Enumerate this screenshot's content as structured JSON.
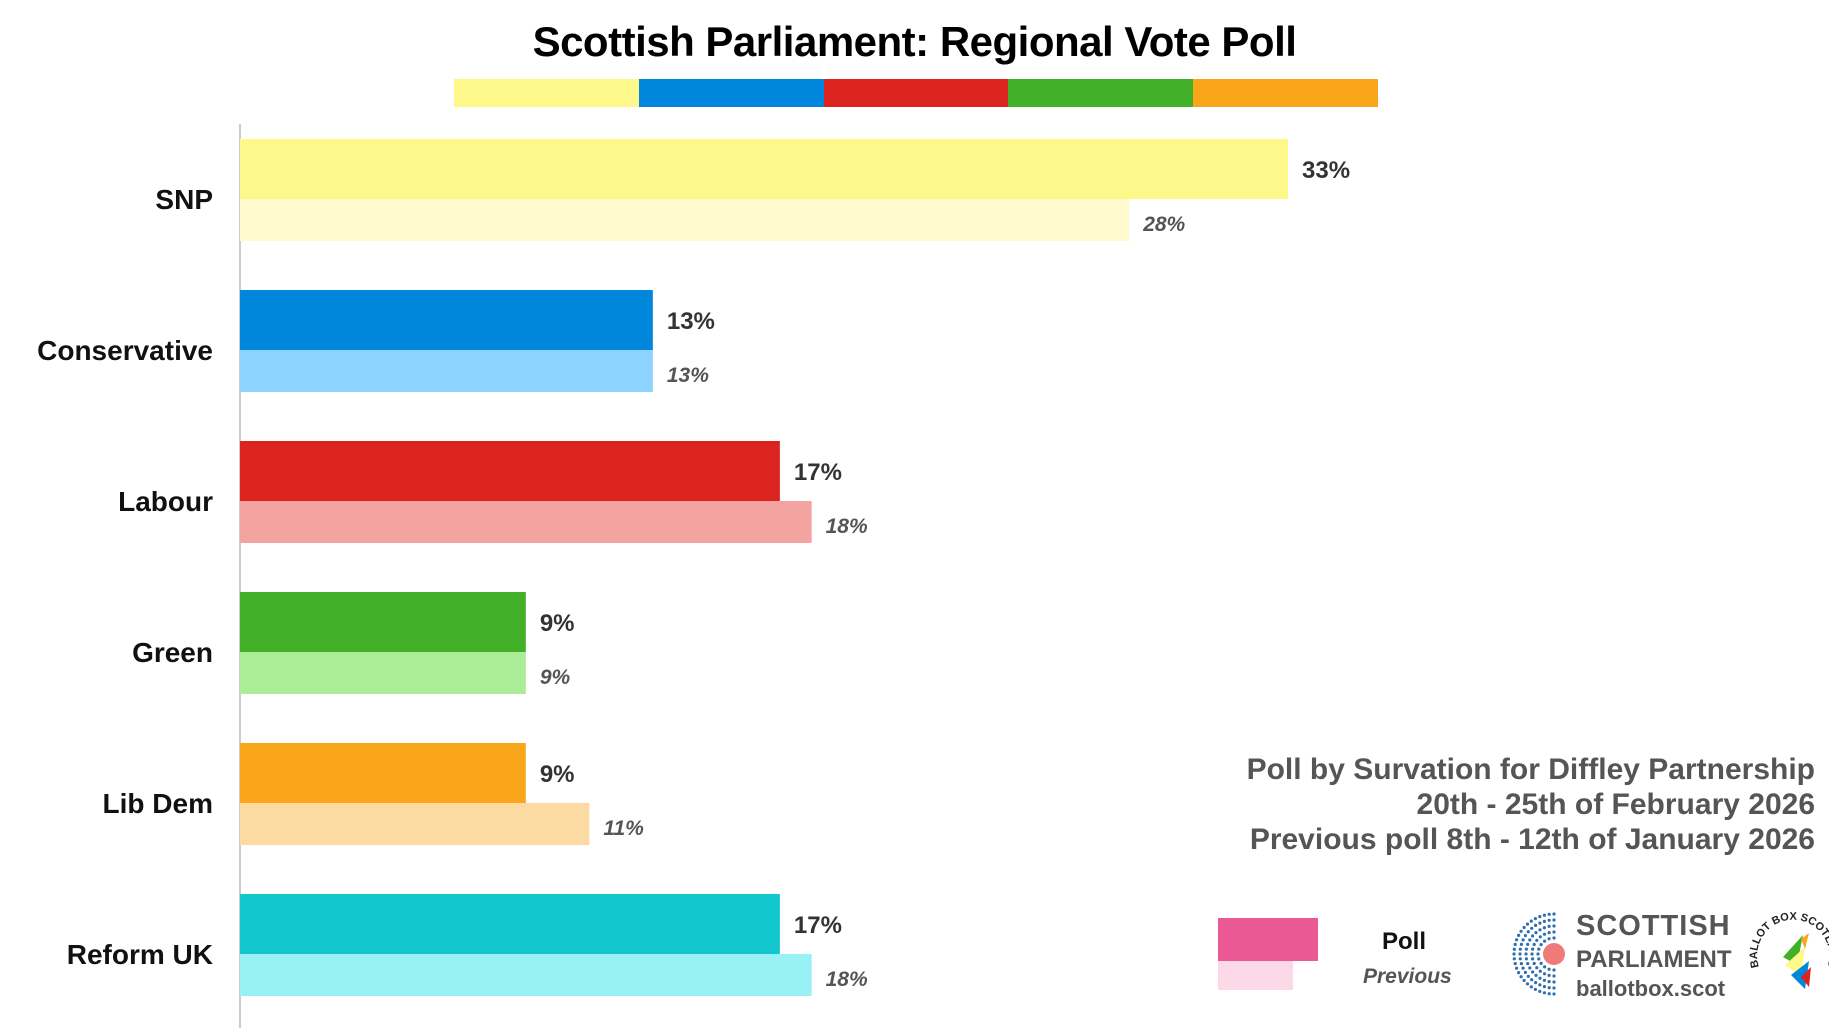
{
  "chart_data": {
    "type": "bar",
    "title": "Scottish Parliament: Regional Vote Poll",
    "categories": [
      "SNP",
      "Conservative",
      "Labour",
      "Green",
      "Lib Dem",
      "Reform UK"
    ],
    "series": [
      {
        "name": "Poll",
        "values": [
          33,
          13,
          17,
          9,
          9,
          17
        ],
        "value_labels": [
          "33%",
          "13%",
          "17%",
          "9%",
          "9%",
          "17%"
        ],
        "colors": [
          "#FEF78A",
          "#0087DC",
          "#DC241F",
          "#43B02A",
          "#FAA61A",
          "#12C8CE"
        ]
      },
      {
        "name": "Previous",
        "values": [
          28,
          13,
          18,
          9,
          11,
          18
        ],
        "value_labels": [
          "28%",
          "13%",
          "18%",
          "9%",
          "11%",
          "18%"
        ],
        "colors": [
          "#FEFACD",
          "#8CD3FF",
          "#F3A3A0",
          "#ABEC96",
          "#FBDBA2",
          "#98F1F5"
        ]
      }
    ],
    "orientation": "horizontal",
    "xlim": [
      0,
      50
    ],
    "grid": false,
    "legend_position": "bottom-right"
  },
  "header_strip_colors": [
    "#FEF78A",
    "#0087DC",
    "#DC241F",
    "#43B02A",
    "#FAA61A"
  ],
  "source": {
    "line1": "Poll by Survation for Diffley Partnership",
    "line2": "20th - 25th of February 2026",
    "line3": "Previous poll 8th - 12th of January 2026"
  },
  "legend": {
    "poll_label": "Poll",
    "previous_label": "Previous",
    "poll_color": "#EA5993",
    "previous_color": "#FDD9E8"
  },
  "logo": {
    "line1": "SCOTTISH",
    "line2": "PARLIAMENT",
    "line3": "ballotbox.scot",
    "icon": "parliament-hemicycle-icon",
    "badge_text": "BALLOT BOX SCOTLAND",
    "badge_icon": "ballot-box-scotland-badge-icon"
  }
}
